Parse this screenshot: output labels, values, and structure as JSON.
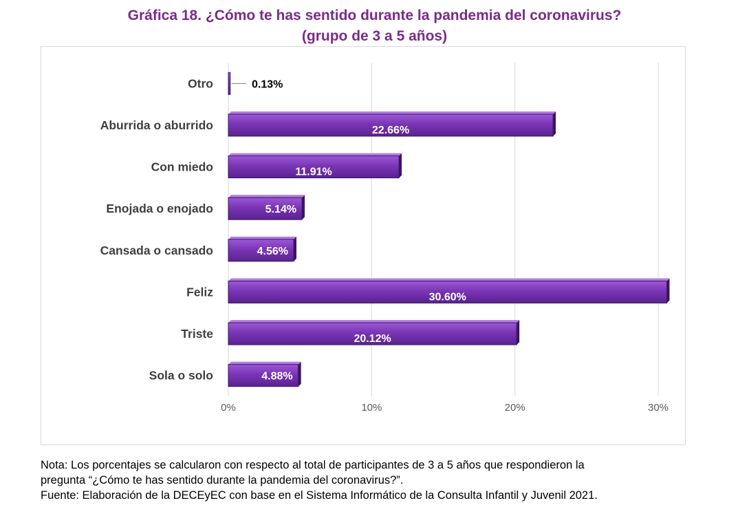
{
  "title": {
    "line1": "Gráfica 18. ¿Cómo te has sentido durante la pandemia del coronavirus?",
    "line2": "(grupo de 3 a 5 años)"
  },
  "chart_data": {
    "type": "bar",
    "orientation": "horizontal",
    "categories": [
      "Otro",
      "Aburrida o aburrido",
      "Con miedo",
      "Enojada o enojado",
      "Cansada o cansado",
      "Feliz",
      "Triste",
      "Sola o solo"
    ],
    "values": [
      0.13,
      22.66,
      11.91,
      5.14,
      4.56,
      30.6,
      20.12,
      4.88
    ],
    "data_labels": [
      "0.13%",
      "22.66%",
      "11.91%",
      "5.14%",
      "4.56%",
      "30.60%",
      "20.12%",
      "4.88%"
    ],
    "xlim": [
      0,
      30
    ],
    "x_ticks": [
      0,
      10,
      20,
      30
    ],
    "x_tick_labels": [
      "0%",
      "10%",
      "20%",
      "30%"
    ],
    "grid": true,
    "legend": false,
    "bar_color": "#7a35b5",
    "bar_edge_color": "#3d1560",
    "xlabel": "",
    "ylabel": ""
  },
  "notes": {
    "line1": "Nota: Los porcentajes se calcularon con respecto al total de participantes de 3 a 5 años que respondieron la",
    "line2": "pregunta “¿Cómo te has sentido durante la pandemia del coronavirus?”.",
    "line3": "Fuente: Elaboración de la DECEyEC con base en el Sistema Informático de la Consulta Infantil y Juvenil 2021."
  }
}
